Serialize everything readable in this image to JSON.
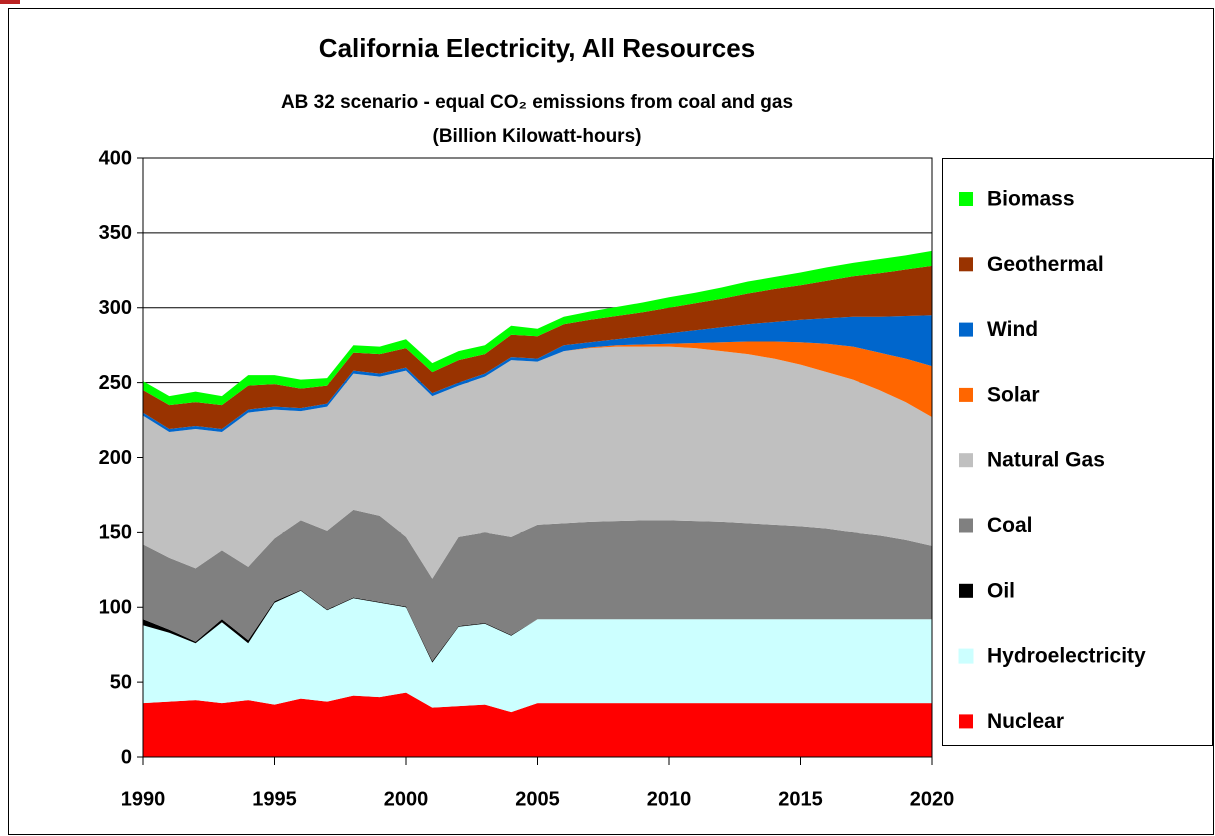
{
  "chart_data": {
    "type": "stacked_area",
    "title": "California Electricity, All Resources",
    "subtitle": [
      "AB 32 scenario - equal CO₂ emissions from coal and gas",
      "(Billion Kilowatt-hours)"
    ],
    "x": [
      1990,
      1991,
      1992,
      1993,
      1994,
      1995,
      1996,
      1997,
      1998,
      1999,
      2000,
      2001,
      2002,
      2003,
      2004,
      2005,
      2006,
      2007,
      2008,
      2009,
      2010,
      2011,
      2012,
      2013,
      2014,
      2015,
      2016,
      2017,
      2018,
      2019,
      2020
    ],
    "xlim": [
      1990,
      2020
    ],
    "xticks": [
      1990,
      1995,
      2000,
      2005,
      2010,
      2015,
      2020
    ],
    "ylim": [
      0,
      400
    ],
    "yticks": [
      0,
      50,
      100,
      150,
      200,
      250,
      300,
      350,
      400
    ],
    "grid": true,
    "legend": "right",
    "series": [
      {
        "name": "Nuclear",
        "color": "#ff0000",
        "values": [
          36,
          37,
          38,
          36,
          38,
          35,
          39,
          37,
          41,
          40,
          43,
          33,
          34,
          35,
          30,
          36,
          36,
          36,
          36,
          36,
          36,
          36,
          36,
          36,
          36,
          36,
          36,
          36,
          36,
          36,
          36
        ]
      },
      {
        "name": "Hydroelectricity",
        "color": "#ccffff",
        "values": [
          52,
          46,
          38,
          54,
          38,
          68,
          72,
          61,
          65,
          63,
          57,
          30,
          53,
          54,
          51,
          56,
          56,
          56,
          56,
          56,
          56,
          56,
          56,
          56,
          56,
          56,
          56,
          56,
          56,
          56,
          56
        ]
      },
      {
        "name": "Oil",
        "color": "#000000",
        "values": [
          4,
          2,
          1,
          2,
          2,
          1,
          0.5,
          0.5,
          0.5,
          0.5,
          0.5,
          1,
          0.5,
          0.5,
          0.5,
          0,
          0,
          0,
          0,
          0,
          0,
          0,
          0,
          0,
          0,
          0,
          0,
          0,
          0,
          0,
          0
        ]
      },
      {
        "name": "Coal",
        "color": "#808080",
        "values": [
          50,
          48,
          49,
          46,
          49,
          42,
          46.5,
          52.5,
          58.5,
          57.5,
          46.5,
          55,
          59.5,
          60.5,
          65.5,
          63,
          64,
          65,
          65.5,
          66,
          66,
          65.5,
          65,
          64,
          63,
          62,
          60.5,
          58,
          56,
          53,
          49
        ]
      },
      {
        "name": "Natural Gas",
        "color": "#c0c0c0",
        "values": [
          86,
          84,
          93,
          79,
          103,
          86,
          73,
          83,
          91,
          93,
          111,
          122,
          101,
          104,
          118,
          109,
          115,
          116,
          116.5,
          116,
          116,
          115.5,
          114,
          113,
          111,
          108,
          104.5,
          102,
          97,
          92,
          86
        ]
      },
      {
        "name": "Solar",
        "color": "#ff6600",
        "values": [
          0,
          0,
          0,
          0,
          0,
          0,
          0,
          0,
          0,
          0,
          0,
          0,
          0,
          0,
          0,
          0,
          0,
          0.5,
          1,
          1.5,
          2,
          3.5,
          6,
          8.5,
          11.5,
          15,
          19,
          22,
          25,
          29,
          34
        ]
      },
      {
        "name": "Wind",
        "color": "#0066cc",
        "values": [
          2,
          2,
          2,
          2,
          2,
          2,
          2,
          2,
          2,
          2,
          2,
          2,
          2,
          2,
          2,
          2,
          4,
          3.5,
          4,
          5.5,
          7,
          8.5,
          10,
          11.5,
          13,
          15,
          17,
          20,
          24,
          28.5,
          34
        ]
      },
      {
        "name": "Geothermal",
        "color": "#993300",
        "values": [
          15,
          16,
          16,
          16,
          16,
          15,
          13,
          12,
          12,
          13,
          13,
          14,
          15,
          13,
          15,
          15,
          14,
          15,
          15.5,
          16,
          17,
          18,
          19,
          20.5,
          22,
          23,
          25,
          27,
          29,
          31,
          33
        ]
      },
      {
        "name": "Biomass",
        "color": "#00ff00",
        "values": [
          6,
          6,
          7,
          6,
          7,
          6,
          6,
          5,
          5,
          5,
          6,
          6,
          6,
          6,
          6,
          5,
          5,
          5.5,
          6,
          6.5,
          7,
          7,
          7.5,
          8,
          8,
          8.5,
          9,
          9,
          9.5,
          9.5,
          10
        ]
      }
    ]
  }
}
